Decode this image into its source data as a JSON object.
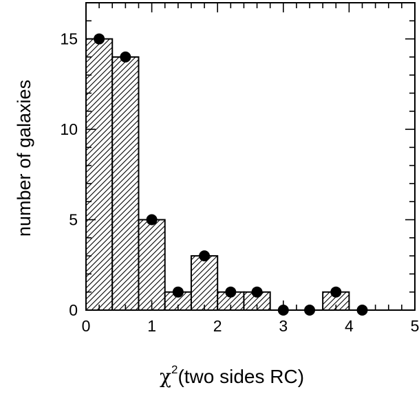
{
  "chart_data": {
    "type": "bar",
    "title": "",
    "xlabel": "χ",
    "xlabel_superscript": "2",
    "xlabel_suffix": "(two sides RC)",
    "ylabel": "number of galaxies",
    "xlim": [
      0,
      5
    ],
    "ylim": [
      0,
      17
    ],
    "xticks": [
      0,
      1,
      2,
      3,
      4,
      5
    ],
    "yticks": [
      0,
      5,
      10,
      15
    ],
    "bin_width": 0.4,
    "bins": [
      {
        "x0": 0.0,
        "x1": 0.4,
        "count": 15
      },
      {
        "x0": 0.4,
        "x1": 0.8,
        "count": 14
      },
      {
        "x0": 0.8,
        "x1": 1.2,
        "count": 5
      },
      {
        "x0": 1.2,
        "x1": 1.6,
        "count": 1
      },
      {
        "x0": 1.6,
        "x1": 2.0,
        "count": 3
      },
      {
        "x0": 2.0,
        "x1": 2.4,
        "count": 1
      },
      {
        "x0": 2.4,
        "x1": 2.8,
        "count": 1
      },
      {
        "x0": 2.8,
        "x1": 3.2,
        "count": 0
      },
      {
        "x0": 3.2,
        "x1": 3.6,
        "count": 0
      },
      {
        "x0": 3.6,
        "x1": 4.0,
        "count": 1
      },
      {
        "x0": 4.0,
        "x1": 4.4,
        "count": 0
      }
    ],
    "points": [
      {
        "x": 0.2,
        "y": 15
      },
      {
        "x": 0.6,
        "y": 14
      },
      {
        "x": 1.0,
        "y": 5
      },
      {
        "x": 1.4,
        "y": 1
      },
      {
        "x": 1.8,
        "y": 3
      },
      {
        "x": 2.2,
        "y": 1
      },
      {
        "x": 2.6,
        "y": 1
      },
      {
        "x": 3.0,
        "y": 0
      },
      {
        "x": 3.4,
        "y": 0
      },
      {
        "x": 3.8,
        "y": 1
      },
      {
        "x": 4.2,
        "y": 0
      }
    ],
    "bar_fill": "hatched",
    "marker": "filled-circle",
    "color": "#000000",
    "grid": false,
    "legend": "none"
  }
}
